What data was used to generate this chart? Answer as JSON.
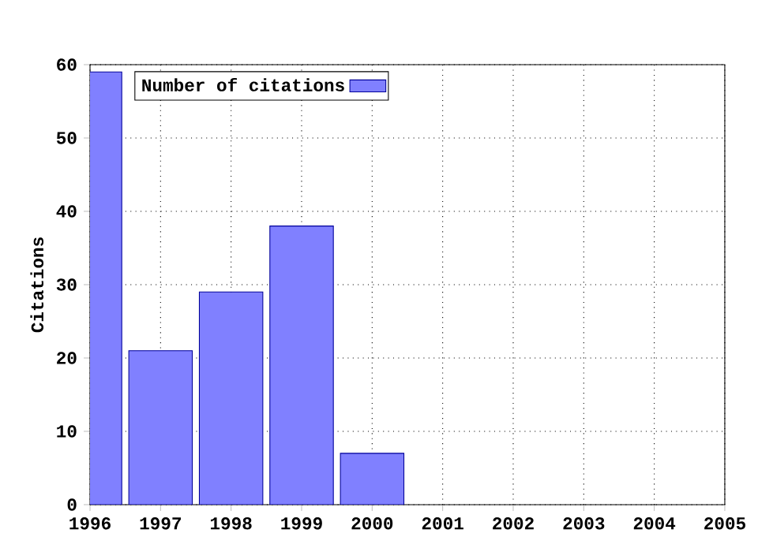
{
  "chart_data": {
    "type": "bar",
    "ylabel": "Citations",
    "x": [
      1996,
      1997,
      1998,
      1999,
      2000
    ],
    "series": [
      {
        "name": "Number of citations",
        "color": "#8080ff",
        "values": [
          59,
          21,
          29,
          38,
          7
        ]
      }
    ],
    "xlim": [
      1996,
      2005
    ],
    "xticks": [
      1996,
      1997,
      1998,
      1999,
      2000,
      2001,
      2002,
      2003,
      2004,
      2005
    ],
    "ylim": [
      0,
      60
    ],
    "yticks": [
      0,
      10,
      20,
      30,
      40,
      50,
      60
    ],
    "grid": true,
    "legend": "top left"
  }
}
